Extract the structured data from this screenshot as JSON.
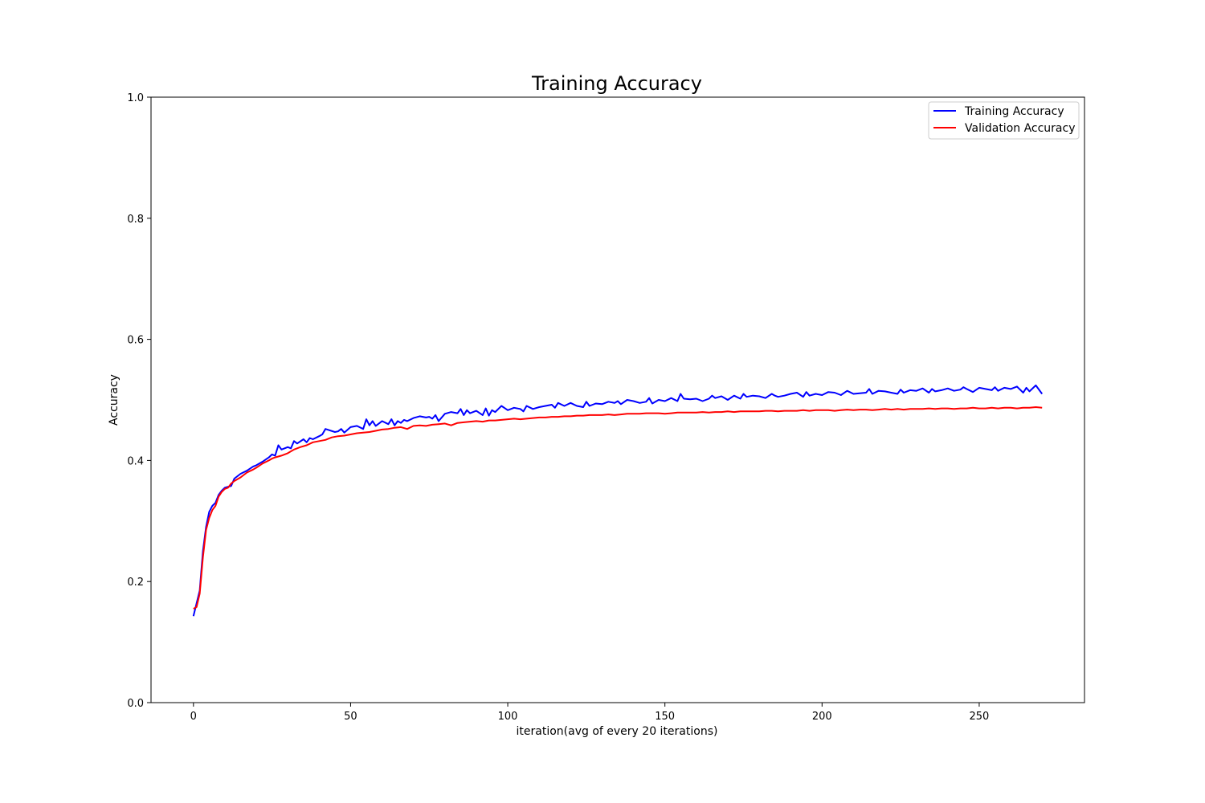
{
  "chart_data": {
    "type": "line",
    "title": "Training Accuracy",
    "xlabel": "iteration(avg of every 20 iterations)",
    "ylabel": "Accuracy",
    "xlim": [
      -13.5,
      283.5
    ],
    "ylim": [
      0.0,
      1.0
    ],
    "xticks": [
      0,
      50,
      100,
      150,
      200,
      250
    ],
    "yticks": [
      0.0,
      0.2,
      0.4,
      0.6,
      0.8,
      1.0
    ],
    "xtick_labels": [
      "0",
      "50",
      "100",
      "150",
      "200",
      "250"
    ],
    "ytick_labels": [
      "0.0",
      "0.2",
      "0.4",
      "0.6",
      "0.8",
      "1.0"
    ],
    "grid": false,
    "legend_position": "top-right",
    "series": [
      {
        "name": "Training Accuracy",
        "color": "#0000ff",
        "x": [
          0,
          2,
          3,
          4,
          5,
          6,
          7,
          8,
          9,
          10,
          12,
          13,
          15,
          17,
          19,
          20,
          22,
          24,
          25,
          26,
          27,
          28,
          30,
          31,
          32,
          33,
          35,
          36,
          37,
          38,
          40,
          41,
          42,
          45,
          46,
          47,
          48,
          50,
          52,
          54,
          55,
          56,
          57,
          58,
          60,
          62,
          63,
          64,
          65,
          66,
          67,
          68,
          70,
          72,
          74,
          75,
          76,
          77,
          78,
          80,
          82,
          84,
          85,
          86,
          87,
          88,
          90,
          92,
          93,
          94,
          95,
          96,
          98,
          100,
          102,
          104,
          105,
          106,
          108,
          110,
          112,
          114,
          115,
          116,
          118,
          120,
          122,
          124,
          125,
          126,
          128,
          130,
          132,
          134,
          135,
          136,
          138,
          140,
          142,
          144,
          145,
          146,
          148,
          150,
          152,
          154,
          155,
          156,
          158,
          160,
          162,
          164,
          165,
          166,
          168,
          170,
          172,
          174,
          175,
          176,
          178,
          180,
          182,
          184,
          185,
          186,
          188,
          190,
          192,
          194,
          195,
          196,
          198,
          200,
          202,
          204,
          205,
          206,
          208,
          210,
          212,
          214,
          215,
          216,
          218,
          220,
          222,
          224,
          225,
          226,
          228,
          230,
          232,
          234,
          235,
          236,
          238,
          240,
          242,
          244,
          245,
          246,
          248,
          250,
          252,
          254,
          255,
          256,
          258,
          260,
          262,
          264,
          265,
          266,
          268,
          270
        ],
        "y": [
          0.143,
          0.185,
          0.25,
          0.29,
          0.315,
          0.325,
          0.33,
          0.343,
          0.35,
          0.355,
          0.358,
          0.37,
          0.378,
          0.383,
          0.39,
          0.392,
          0.398,
          0.405,
          0.41,
          0.408,
          0.425,
          0.418,
          0.422,
          0.42,
          0.432,
          0.428,
          0.435,
          0.43,
          0.437,
          0.435,
          0.44,
          0.443,
          0.452,
          0.447,
          0.448,
          0.452,
          0.446,
          0.455,
          0.457,
          0.452,
          0.468,
          0.458,
          0.465,
          0.457,
          0.465,
          0.46,
          0.468,
          0.458,
          0.465,
          0.462,
          0.467,
          0.465,
          0.47,
          0.473,
          0.471,
          0.472,
          0.469,
          0.475,
          0.465,
          0.477,
          0.48,
          0.478,
          0.485,
          0.475,
          0.483,
          0.478,
          0.482,
          0.475,
          0.486,
          0.474,
          0.483,
          0.48,
          0.49,
          0.483,
          0.487,
          0.485,
          0.481,
          0.49,
          0.485,
          0.488,
          0.49,
          0.492,
          0.487,
          0.495,
          0.49,
          0.495,
          0.49,
          0.488,
          0.497,
          0.49,
          0.494,
          0.493,
          0.497,
          0.495,
          0.498,
          0.493,
          0.5,
          0.498,
          0.495,
          0.497,
          0.503,
          0.494,
          0.5,
          0.498,
          0.503,
          0.498,
          0.51,
          0.502,
          0.501,
          0.502,
          0.498,
          0.502,
          0.507,
          0.503,
          0.506,
          0.5,
          0.507,
          0.502,
          0.51,
          0.505,
          0.507,
          0.506,
          0.503,
          0.51,
          0.507,
          0.505,
          0.507,
          0.51,
          0.512,
          0.505,
          0.513,
          0.507,
          0.51,
          0.508,
          0.513,
          0.512,
          0.51,
          0.508,
          0.515,
          0.51,
          0.511,
          0.512,
          0.518,
          0.51,
          0.515,
          0.514,
          0.512,
          0.51,
          0.517,
          0.512,
          0.516,
          0.515,
          0.519,
          0.512,
          0.518,
          0.514,
          0.516,
          0.519,
          0.515,
          0.517,
          0.521,
          0.518,
          0.513,
          0.52,
          0.518,
          0.516,
          0.521,
          0.515,
          0.52,
          0.518,
          0.522,
          0.512,
          0.52,
          0.514,
          0.524,
          0.51
        ],
        "style": "jagged"
      },
      {
        "name": "Validation Accuracy",
        "color": "#ff0000",
        "x": [
          0,
          1,
          2,
          3,
          4,
          5,
          6,
          7,
          8,
          9,
          10,
          11,
          12,
          13,
          15,
          17,
          19,
          20,
          22,
          24,
          25,
          26,
          28,
          30,
          32,
          34,
          36,
          38,
          40,
          42,
          44,
          46,
          48,
          50,
          52,
          54,
          56,
          58,
          60,
          62,
          64,
          66,
          68,
          70,
          72,
          74,
          76,
          78,
          80,
          82,
          84,
          86,
          88,
          90,
          92,
          94,
          96,
          98,
          100,
          102,
          104,
          106,
          108,
          110,
          112,
          114,
          116,
          118,
          120,
          122,
          124,
          126,
          128,
          130,
          132,
          134,
          136,
          138,
          140,
          142,
          144,
          146,
          148,
          150,
          152,
          154,
          156,
          158,
          160,
          162,
          164,
          166,
          168,
          170,
          172,
          174,
          176,
          178,
          180,
          182,
          184,
          186,
          188,
          190,
          192,
          194,
          196,
          198,
          200,
          202,
          204,
          206,
          208,
          210,
          212,
          214,
          216,
          218,
          220,
          222,
          224,
          226,
          228,
          230,
          232,
          234,
          236,
          238,
          240,
          242,
          244,
          246,
          248,
          250,
          252,
          254,
          256,
          258,
          260,
          262,
          264,
          266,
          268,
          270
        ],
        "y": [
          0.155,
          0.158,
          0.18,
          0.24,
          0.285,
          0.305,
          0.318,
          0.325,
          0.34,
          0.348,
          0.353,
          0.355,
          0.362,
          0.366,
          0.372,
          0.38,
          0.385,
          0.388,
          0.395,
          0.4,
          0.403,
          0.405,
          0.408,
          0.412,
          0.418,
          0.422,
          0.425,
          0.43,
          0.432,
          0.434,
          0.438,
          0.44,
          0.441,
          0.443,
          0.445,
          0.446,
          0.447,
          0.449,
          0.451,
          0.452,
          0.454,
          0.455,
          0.452,
          0.457,
          0.458,
          0.457,
          0.459,
          0.46,
          0.461,
          0.458,
          0.462,
          0.463,
          0.464,
          0.465,
          0.464,
          0.466,
          0.466,
          0.467,
          0.468,
          0.469,
          0.468,
          0.469,
          0.47,
          0.471,
          0.471,
          0.472,
          0.472,
          0.473,
          0.473,
          0.474,
          0.474,
          0.475,
          0.475,
          0.475,
          0.476,
          0.475,
          0.476,
          0.477,
          0.477,
          0.477,
          0.478,
          0.478,
          0.478,
          0.477,
          0.478,
          0.479,
          0.479,
          0.479,
          0.479,
          0.48,
          0.479,
          0.48,
          0.48,
          0.481,
          0.48,
          0.481,
          0.481,
          0.481,
          0.481,
          0.482,
          0.482,
          0.481,
          0.482,
          0.482,
          0.482,
          0.483,
          0.482,
          0.483,
          0.483,
          0.483,
          0.482,
          0.483,
          0.484,
          0.483,
          0.484,
          0.484,
          0.483,
          0.484,
          0.485,
          0.484,
          0.485,
          0.484,
          0.485,
          0.485,
          0.485,
          0.486,
          0.485,
          0.486,
          0.486,
          0.485,
          0.486,
          0.486,
          0.487,
          0.486,
          0.486,
          0.487,
          0.486,
          0.487,
          0.487,
          0.486,
          0.487,
          0.487,
          0.488,
          0.487
        ],
        "style": "smooth"
      }
    ]
  }
}
